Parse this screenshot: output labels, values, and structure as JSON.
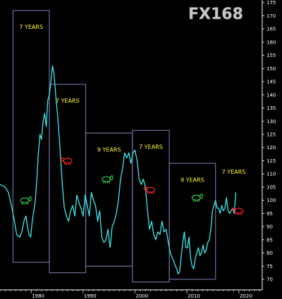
{
  "logo_text": "FX168",
  "colors": {
    "background": "#000000",
    "line": "#40e8e8",
    "box": "#6e6e9e",
    "label": "#ffff33",
    "bull": "#2ecc40",
    "bear": "#ff2020",
    "logo": "#c8c8c8"
  },
  "chart_data": {
    "type": "line",
    "title": "",
    "xlabel": "",
    "ylabel": "",
    "xlim": [
      1974.0,
      2024.5
    ],
    "ylim": [
      66,
      176
    ],
    "y_axis_position": "right",
    "y_ticks": [
      70,
      75,
      80,
      85,
      90,
      95,
      100,
      105,
      110,
      115,
      120,
      125,
      130,
      135,
      140,
      145,
      150,
      155,
      160,
      165,
      170,
      175
    ],
    "x_ticks": [
      1980,
      1990,
      2000,
      2010,
      2020
    ],
    "series": [
      {
        "name": "",
        "x": [
          1974.0,
          1975.0,
          1975.6,
          1976.2,
          1976.8,
          1977.2,
          1977.8,
          1978.2,
          1978.6,
          1979.0,
          1979.3,
          1979.6,
          1979.9,
          1980.2,
          1980.5,
          1980.8,
          1981.1,
          1981.4,
          1981.7,
          1982.0,
          1982.3,
          1982.6,
          1982.9,
          1983.2,
          1983.5,
          1983.8,
          1984.1,
          1984.4,
          1984.8,
          1985.1,
          1985.4,
          1985.7,
          1986.0,
          1986.4,
          1986.8,
          1987.2,
          1987.6,
          1988.0,
          1988.4,
          1988.8,
          1989.2,
          1989.6,
          1990.0,
          1990.4,
          1990.8,
          1991.2,
          1991.6,
          1992.0,
          1992.4,
          1992.8,
          1993.2,
          1993.6,
          1994.0,
          1994.4,
          1994.8,
          1995.2,
          1995.6,
          1996.0,
          1996.4,
          1996.8,
          1997.2,
          1997.6,
          1998.0,
          1998.4,
          1998.8,
          1999.2,
          1999.6,
          2000.0,
          2000.4,
          2000.8,
          2001.2,
          2001.6,
          2002.0,
          2002.4,
          2002.8,
          2003.2,
          2003.6,
          2004.0,
          2004.4,
          2004.8,
          2005.2,
          2005.6,
          2006.0,
          2006.4,
          2006.8,
          2007.2,
          2007.6,
          2008.0,
          2008.3,
          2008.6,
          2008.9,
          2009.2,
          2009.5,
          2009.8,
          2010.1,
          2010.4,
          2010.7,
          2011.0,
          2011.3,
          2011.6,
          2011.9,
          2012.2,
          2012.5,
          2012.8,
          2013.1,
          2013.4,
          2013.7,
          2014.0,
          2014.3,
          2014.6,
          2014.9,
          2015.2,
          2015.5,
          2015.8,
          2016.1,
          2016.4,
          2016.7,
          2017.0,
          2017.3,
          2017.6,
          2017.9,
          2018.2,
          2018.5,
          2018.8,
          2019.1,
          2019.4
        ],
        "y": [
          106,
          105,
          103,
          98,
          92,
          87,
          86,
          88,
          92,
          94,
          90,
          87,
          86,
          92,
          96,
          100,
          108,
          118,
          125,
          123,
          130,
          133,
          128,
          138,
          140,
          145,
          151,
          148,
          138,
          132,
          124,
          115,
          106,
          97,
          94,
          92,
          96,
          98,
          94,
          102,
          99,
          97,
          94,
          102,
          98,
          94,
          103,
          100,
          98,
          92,
          96,
          86,
          84,
          85,
          89,
          82,
          90,
          92,
          95,
          100,
          108,
          112,
          118,
          116,
          118,
          114,
          118,
          119,
          115,
          108,
          106,
          108,
          105,
          96,
          89,
          92,
          87,
          85,
          88,
          87,
          92,
          88,
          89,
          84,
          80,
          78,
          76,
          74,
          72,
          73,
          79,
          84,
          88,
          82,
          82,
          86,
          78,
          75,
          74,
          78,
          80,
          82,
          79,
          80,
          83,
          80,
          81,
          84,
          85,
          89,
          96,
          98,
          100,
          97,
          97,
          95,
          98,
          96,
          97,
          101,
          96,
          95,
          96,
          97,
          95,
          103
        ]
      }
    ],
    "periods": [
      {
        "label": "7 YEARS",
        "start": 1976.5,
        "end": 1983.5,
        "high": 172,
        "low": 76.5,
        "market": "bull"
      },
      {
        "label": "7 YEARS",
        "start": 1983.5,
        "end": 1990.5,
        "high": 144,
        "low": 72.5,
        "market": "bear"
      },
      {
        "label": "9 YEARS",
        "start": 1990.5,
        "end": 1999.5,
        "high": 125.5,
        "low": 75,
        "market": "bull"
      },
      {
        "label": "7 YEARS",
        "start": 1999.5,
        "end": 2006.6,
        "high": 126.5,
        "low": 69,
        "market": "bear"
      },
      {
        "label": "9 YEARS",
        "start": 2006.6,
        "end": 2015.5,
        "high": 114,
        "low": 70,
        "market": "bull"
      },
      {
        "label": "7 YEARS",
        "start": 2015.5,
        "end": 2022.5,
        "high": null,
        "low": null,
        "market": "bear"
      }
    ]
  }
}
